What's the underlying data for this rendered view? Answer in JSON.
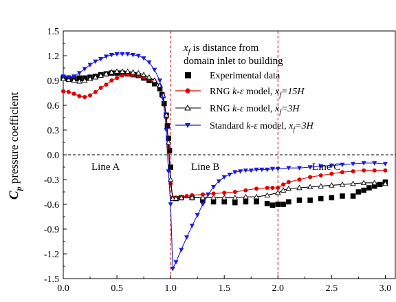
{
  "chart_data": {
    "type": "line",
    "ylabel": "C",
    "ylabel_sub": "p",
    "ylabel_rest": " pressure coefficient",
    "xlim": [
      0.0,
      3.1
    ],
    "ylim": [
      -1.5,
      1.5
    ],
    "xticks": [
      0.0,
      0.5,
      1.0,
      1.5,
      2.0,
      2.5,
      3.0
    ],
    "xtick_labels": [
      "0.0",
      "0.5",
      "1.0",
      "1.5",
      "2.0",
      "2.5",
      "3.0"
    ],
    "yticks": [
      -1.5,
      -1.2,
      -0.9,
      -0.6,
      -0.3,
      0.0,
      0.3,
      0.6,
      0.9,
      1.2,
      1.5
    ],
    "ytick_labels": [
      "-1.5",
      "-1.2",
      "-0.9",
      "-0.6",
      "-0.3",
      "0.0",
      "0.3",
      "0.6",
      "0.9",
      "1.2",
      "1.5"
    ],
    "grid": false,
    "legend_position": "top-right",
    "reference_lines": {
      "horizontal_y": 0.0,
      "vertical_x": [
        1.0,
        2.0
      ]
    },
    "annotations": {
      "note_var": "x",
      "note_sub": "f",
      "note_line1_rest": " is distance from",
      "note_line2": "domain inlet to building",
      "line_a": "Line A",
      "line_b": "Line B",
      "line_c": "Line C"
    },
    "series": [
      {
        "name": "Experimental data",
        "color": "#000000",
        "marker": "square",
        "line": false,
        "x": [
          0.0,
          0.05,
          0.1,
          0.15,
          0.2,
          0.25,
          0.3,
          0.35,
          0.4,
          0.45,
          0.5,
          0.55,
          0.6,
          0.65,
          0.7,
          0.75,
          0.8,
          0.85,
          0.9,
          0.92,
          0.94,
          0.96,
          0.97,
          0.98,
          0.99,
          1.0,
          1.05,
          1.1,
          1.2,
          1.3,
          1.4,
          1.5,
          1.6,
          1.7,
          1.8,
          1.9,
          1.95,
          2.0,
          2.05,
          2.1,
          2.2,
          2.3,
          2.4,
          2.5,
          2.6,
          2.7,
          2.75,
          2.8,
          2.85,
          2.9,
          2.95,
          3.0
        ],
        "y": [
          0.93,
          0.92,
          0.92,
          0.93,
          0.93,
          0.94,
          0.95,
          0.97,
          0.98,
          0.99,
          0.99,
          0.99,
          0.98,
          0.97,
          0.96,
          0.93,
          0.9,
          0.86,
          0.8,
          0.73,
          0.62,
          0.48,
          0.35,
          0.2,
          0.05,
          -0.15,
          -0.53,
          -0.52,
          -0.52,
          -0.55,
          -0.57,
          -0.57,
          -0.58,
          -0.57,
          -0.57,
          -0.59,
          -0.61,
          -0.6,
          -0.6,
          -0.57,
          -0.55,
          -0.55,
          -0.53,
          -0.52,
          -0.5,
          -0.5,
          -0.45,
          -0.43,
          -0.4,
          -0.38,
          -0.36,
          -0.33
        ]
      },
      {
        "name": "RNG k-ε model, x_f=15H",
        "color": "#e00000",
        "marker": "circle",
        "line": true,
        "x": [
          0.0,
          0.05,
          0.1,
          0.15,
          0.2,
          0.25,
          0.3,
          0.35,
          0.4,
          0.45,
          0.5,
          0.55,
          0.6,
          0.65,
          0.7,
          0.75,
          0.8,
          0.85,
          0.9,
          0.93,
          0.96,
          0.98,
          1.0,
          1.02,
          1.05,
          1.1,
          1.15,
          1.2,
          1.3,
          1.4,
          1.5,
          1.6,
          1.7,
          1.8,
          1.9,
          1.95,
          2.0,
          2.05,
          2.1,
          2.2,
          2.3,
          2.4,
          2.5,
          2.6,
          2.7,
          2.8,
          2.9,
          3.0
        ],
        "y": [
          0.77,
          0.76,
          0.74,
          0.71,
          0.7,
          0.72,
          0.76,
          0.81,
          0.85,
          0.9,
          0.93,
          0.96,
          0.97,
          0.97,
          0.96,
          0.94,
          0.92,
          0.9,
          0.84,
          0.72,
          0.45,
          0.1,
          -0.35,
          -0.52,
          -0.52,
          -0.51,
          -0.5,
          -0.49,
          -0.48,
          -0.47,
          -0.46,
          -0.45,
          -0.43,
          -0.41,
          -0.4,
          -0.4,
          -0.4,
          -0.36,
          -0.33,
          -0.3,
          -0.27,
          -0.25,
          -0.23,
          -0.21,
          -0.2,
          -0.19,
          -0.19,
          -0.19
        ]
      },
      {
        "name": "RNG k-ε model, x_f=3H",
        "color": "#000000",
        "marker": "triangle-up-open",
        "line": true,
        "x": [
          0.0,
          0.05,
          0.1,
          0.15,
          0.2,
          0.25,
          0.3,
          0.35,
          0.4,
          0.45,
          0.5,
          0.55,
          0.6,
          0.65,
          0.7,
          0.75,
          0.8,
          0.85,
          0.9,
          0.93,
          0.96,
          0.98,
          1.0,
          1.02,
          1.05,
          1.1,
          1.2,
          1.3,
          1.4,
          1.5,
          1.6,
          1.7,
          1.8,
          1.9,
          2.0,
          2.05,
          2.1,
          2.2,
          2.3,
          2.4,
          2.5,
          2.6,
          2.7,
          2.8,
          2.9,
          3.0
        ],
        "y": [
          0.92,
          0.91,
          0.9,
          0.89,
          0.9,
          0.92,
          0.94,
          0.96,
          0.98,
          1.0,
          1.01,
          1.01,
          1.01,
          1.0,
          0.99,
          0.97,
          0.94,
          0.9,
          0.84,
          0.72,
          0.48,
          0.15,
          -0.3,
          -0.53,
          -0.53,
          -0.52,
          -0.52,
          -0.52,
          -0.52,
          -0.52,
          -0.52,
          -0.51,
          -0.51,
          -0.49,
          -0.46,
          -0.43,
          -0.41,
          -0.4,
          -0.39,
          -0.38,
          -0.37,
          -0.36,
          -0.35,
          -0.34,
          -0.34,
          -0.35
        ]
      },
      {
        "name": "Standard k-ε model, x_f=3H",
        "color": "#1a1adb",
        "marker": "triangle-down",
        "line": true,
        "x": [
          0.0,
          0.05,
          0.1,
          0.15,
          0.2,
          0.25,
          0.3,
          0.35,
          0.4,
          0.45,
          0.5,
          0.55,
          0.6,
          0.65,
          0.7,
          0.75,
          0.8,
          0.85,
          0.9,
          0.93,
          0.96,
          0.98,
          1.0,
          1.02,
          1.05,
          1.1,
          1.15,
          1.2,
          1.25,
          1.3,
          1.35,
          1.4,
          1.45,
          1.5,
          1.55,
          1.6,
          1.65,
          1.7,
          1.75,
          1.8,
          1.85,
          1.9,
          1.95,
          2.0,
          2.1,
          2.2,
          2.3,
          2.4,
          2.5,
          2.6,
          2.7,
          2.8,
          2.9,
          3.0
        ],
        "y": [
          0.95,
          0.94,
          0.95,
          0.99,
          1.04,
          1.09,
          1.13,
          1.16,
          1.19,
          1.21,
          1.22,
          1.22,
          1.22,
          1.21,
          1.2,
          1.17,
          1.12,
          1.03,
          0.9,
          0.68,
          0.3,
          -0.2,
          -0.6,
          -1.38,
          -1.3,
          -1.15,
          -1.0,
          -0.86,
          -0.73,
          -0.6,
          -0.48,
          -0.39,
          -0.32,
          -0.27,
          -0.24,
          -0.21,
          -0.2,
          -0.19,
          -0.19,
          -0.18,
          -0.18,
          -0.18,
          -0.17,
          -0.17,
          -0.16,
          -0.16,
          -0.15,
          -0.14,
          -0.13,
          -0.12,
          -0.11,
          -0.1,
          -0.1,
          -0.11
        ]
      }
    ]
  },
  "legend": {
    "entries": [
      {
        "pre": "Experimental data",
        "var": "",
        "mid": "",
        "sub": "",
        "post": ""
      },
      {
        "pre": "RNG ",
        "var": "k-ε",
        "mid": " model, ",
        "sub": "f",
        "post": "=15H"
      },
      {
        "pre": "RNG ",
        "var": "k-ε",
        "mid": " model, ",
        "sub": "f",
        "post": "=3H"
      },
      {
        "pre": "Standard ",
        "var": "k-ε",
        "mid": " model, ",
        "sub": "f",
        "post": "=3H"
      }
    ],
    "sub_var": "x"
  }
}
